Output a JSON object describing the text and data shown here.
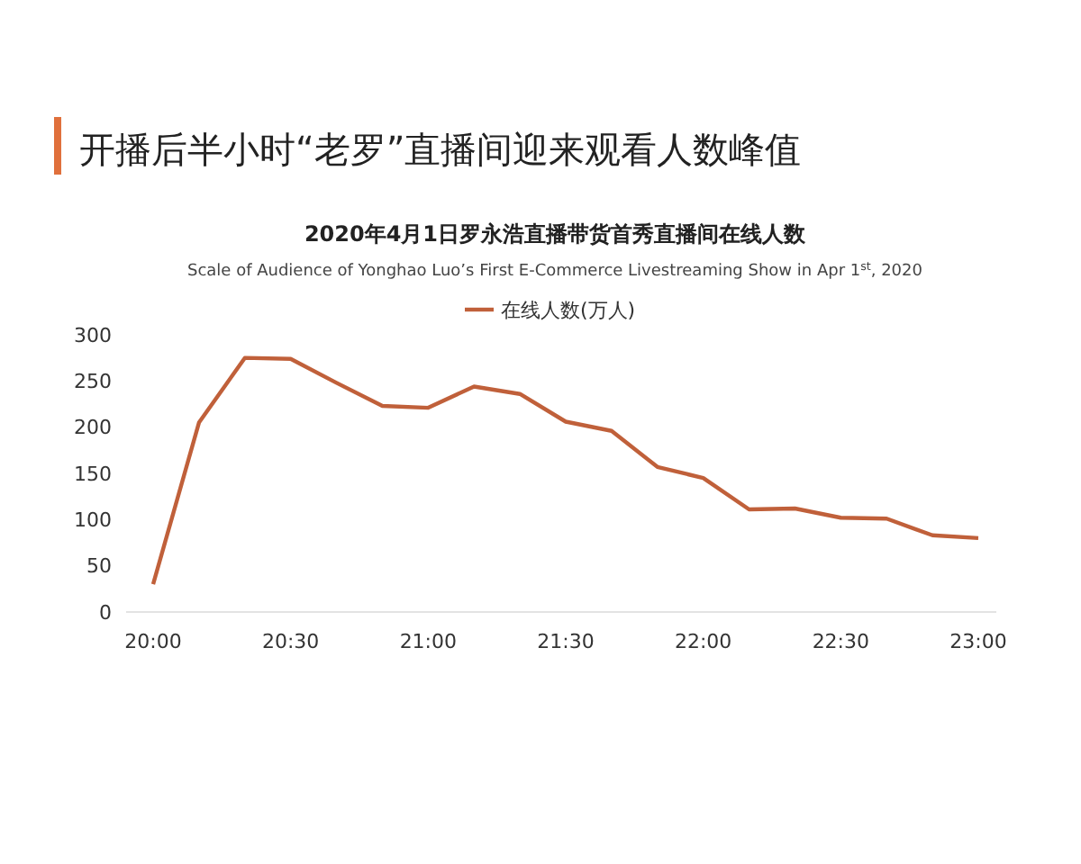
{
  "chart_data": {
    "type": "line",
    "title": "开播后半小时“老罗”直播间迎来观看人数峰值",
    "subtitle": "2020年4月1日罗永浩直播带货首秀直播间在线人数",
    "annotations": [
      "Scale of Audience of Yonghao Luo’s First E-Commerce Livestreaming Show in Apr 1$^{st}$, 2020"
    ],
    "categories": [
      "20:00",
      null,
      null,
      "20:30",
      null,
      null,
      "21:00",
      null,
      null,
      "21:30",
      null,
      null,
      "22:00",
      null,
      null,
      "22:30",
      null,
      null,
      "23:00"
    ],
    "series": [
      {
        "name": "在线人数(万人)",
        "color": "#c0603a",
        "values": [
          30,
          205,
          275,
          274,
          248,
          223,
          221,
          244,
          236,
          206,
          196,
          157,
          145,
          111,
          112,
          102,
          101,
          83,
          80
        ]
      }
    ],
    "ylim": [
      0,
      300
    ],
    "yticks": [
      0,
      50,
      100,
      150,
      200,
      250,
      300
    ],
    "legend": "top",
    "marker": "none",
    "line_style": "solid"
  }
}
